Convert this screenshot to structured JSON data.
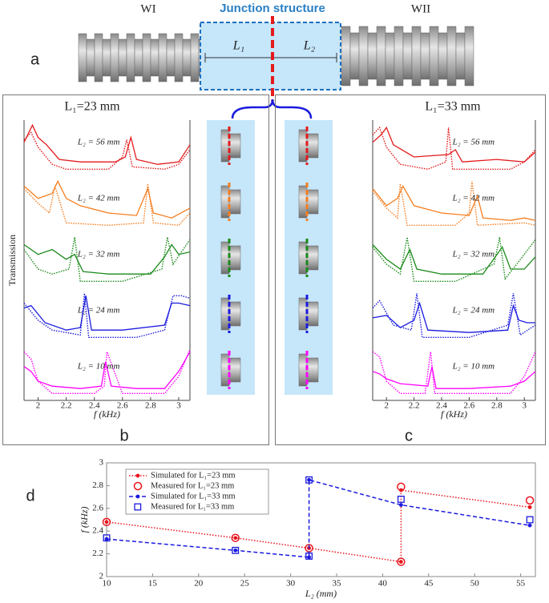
{
  "panel_a": {
    "label": "a",
    "left_label": "WI",
    "right_label": "WII",
    "title": "Junction structure",
    "segment_1": "L₁",
    "segment_2": "L₂"
  },
  "chart_data": [
    {
      "type": "spectra",
      "label": "b",
      "title": "L₁=23 mm",
      "ylabel": "Transmission",
      "xlabel": "f (kHz)",
      "xlim": [
        1.9,
        3.08
      ],
      "xticks": [
        2,
        2.2,
        2.4,
        2.6,
        2.8,
        3
      ],
      "series": [
        {
          "name": "L₂ = 56 mm",
          "color": "#e41a1c",
          "measured": {
            "x": [
              1.9,
              1.96,
              2.0,
              2.06,
              2.15,
              2.3,
              2.55,
              2.62,
              2.66,
              2.7,
              2.85,
              3.0,
              3.08
            ],
            "values": [
              0.6,
              0.95,
              0.7,
              0.55,
              0.25,
              0.2,
              0.2,
              0.3,
              0.7,
              0.25,
              0.15,
              0.2,
              0.55
            ]
          },
          "simulated": {
            "x": [
              1.9,
              1.95,
              2.0,
              2.1,
              2.2,
              2.5,
              2.6,
              2.63,
              2.67,
              2.9,
              3.0,
              3.08
            ],
            "values": [
              0.65,
              0.8,
              0.5,
              0.15,
              0.05,
              0.05,
              0.3,
              0.65,
              0.1,
              0.05,
              0.15,
              0.45
            ]
          }
        },
        {
          "name": "L₂ = 42 mm",
          "color": "#f57e20",
          "measured": {
            "x": [
              1.9,
              2.0,
              2.1,
              2.14,
              2.2,
              2.3,
              2.5,
              2.7,
              2.78,
              2.82,
              2.95,
              3.08
            ],
            "values": [
              0.85,
              0.6,
              0.7,
              0.95,
              0.6,
              0.45,
              0.3,
              0.25,
              0.8,
              0.3,
              0.2,
              0.4
            ]
          },
          "simulated": {
            "x": [
              1.9,
              2.0,
              2.08,
              2.12,
              2.2,
              2.5,
              2.75,
              2.78,
              2.82,
              3.0,
              3.08
            ],
            "values": [
              0.8,
              0.5,
              0.3,
              0.85,
              0.1,
              0.05,
              0.1,
              0.9,
              0.1,
              0.05,
              0.3
            ]
          }
        },
        {
          "name": "L₂ = 32 mm",
          "color": "#1a8a1a",
          "measured": {
            "x": [
              1.9,
              2.0,
              2.1,
              2.2,
              2.26,
              2.32,
              2.5,
              2.8,
              2.9,
              2.95,
              3.0,
              3.08
            ],
            "values": [
              0.8,
              0.6,
              0.7,
              0.5,
              0.6,
              0.25,
              0.2,
              0.2,
              0.55,
              0.8,
              0.6,
              0.65
            ]
          },
          "simulated": {
            "x": [
              1.9,
              2.0,
              2.1,
              2.22,
              2.26,
              2.3,
              2.6,
              2.88,
              2.92,
              2.96,
              3.08
            ],
            "values": [
              0.7,
              0.3,
              0.2,
              0.3,
              0.95,
              0.05,
              0.05,
              0.3,
              0.95,
              0.4,
              0.9
            ]
          }
        },
        {
          "name": "L₂ = 24 mm",
          "color": "#1a1adf",
          "measured": {
            "x": [
              1.9,
              1.95,
              2.05,
              2.2,
              2.3,
              2.34,
              2.38,
              2.6,
              2.9,
              2.95,
              3.0,
              3.08
            ],
            "values": [
              0.65,
              0.7,
              0.35,
              0.2,
              0.25,
              0.9,
              0.2,
              0.2,
              0.3,
              0.75,
              0.75,
              0.7
            ]
          },
          "simulated": {
            "x": [
              1.9,
              2.0,
              2.1,
              2.3,
              2.33,
              2.36,
              2.7,
              2.9,
              2.96,
              3.02,
              3.08
            ],
            "values": [
              0.75,
              0.4,
              0.2,
              0.1,
              0.95,
              0.05,
              0.05,
              0.2,
              0.9,
              0.9,
              0.85
            ]
          }
        },
        {
          "name": "L₂ = 10 mm",
          "color": "#ff00ff",
          "measured": {
            "x": [
              1.9,
              1.95,
              2.0,
              2.1,
              2.3,
              2.45,
              2.48,
              2.52,
              2.7,
              2.9,
              3.0,
              3.08
            ],
            "values": [
              0.6,
              0.5,
              0.3,
              0.2,
              0.15,
              0.2,
              0.7,
              0.2,
              0.15,
              0.15,
              0.5,
              0.9
            ]
          },
          "simulated": {
            "x": [
              1.9,
              1.95,
              2.0,
              2.1,
              2.4,
              2.47,
              2.49,
              2.6,
              2.9,
              3.0,
              3.08
            ],
            "values": [
              0.9,
              0.75,
              0.3,
              0.05,
              0.05,
              0.2,
              0.9,
              0.05,
              0.05,
              0.4,
              0.95
            ]
          }
        }
      ]
    },
    {
      "type": "spectra",
      "label": "c",
      "title": "L₁=33 mm",
      "xlabel": "f (kHz)",
      "xlim": [
        1.9,
        3.08
      ],
      "xticks": [
        2,
        2.2,
        2.4,
        2.6,
        2.8,
        3
      ],
      "series": [
        {
          "name": "L₂ = 56 mm",
          "color": "#e41a1c",
          "measured": {
            "x": [
              1.9,
              1.96,
              2.0,
              2.05,
              2.2,
              2.45,
              2.5,
              2.55,
              2.8,
              3.0,
              3.08
            ],
            "values": [
              0.6,
              0.75,
              0.9,
              0.55,
              0.3,
              0.35,
              0.45,
              0.2,
              0.25,
              0.2,
              0.4
            ]
          },
          "simulated": {
            "x": [
              1.9,
              1.95,
              2.0,
              2.1,
              2.3,
              2.43,
              2.45,
              2.48,
              2.9,
              3.0,
              3.08
            ],
            "values": [
              0.75,
              0.9,
              0.5,
              0.15,
              0.05,
              0.2,
              0.9,
              0.05,
              0.05,
              0.2,
              0.45
            ]
          }
        },
        {
          "name": "L₂ = 42 mm",
          "color": "#f57e20",
          "measured": {
            "x": [
              1.9,
              2.0,
              2.08,
              2.12,
              2.2,
              2.4,
              2.6,
              2.66,
              2.7,
              2.9,
              3.0,
              3.08
            ],
            "values": [
              0.8,
              0.45,
              0.6,
              0.85,
              0.45,
              0.3,
              0.25,
              0.65,
              0.2,
              0.15,
              0.2,
              0.15
            ]
          },
          "simulated": {
            "x": [
              1.9,
              2.0,
              2.08,
              2.1,
              2.15,
              2.5,
              2.6,
              2.62,
              2.66,
              3.0,
              3.08
            ],
            "values": [
              0.75,
              0.4,
              0.2,
              0.9,
              0.05,
              0.05,
              0.3,
              0.95,
              0.05,
              0.1,
              0.05
            ]
          }
        },
        {
          "name": "L₂ = 32 mm",
          "color": "#1a8a1a",
          "measured": {
            "x": [
              1.9,
              2.0,
              2.1,
              2.17,
              2.22,
              2.4,
              2.7,
              2.84,
              2.9,
              3.0,
              3.08
            ],
            "values": [
              0.8,
              0.5,
              0.3,
              0.7,
              0.3,
              0.2,
              0.2,
              0.75,
              0.3,
              0.3,
              0.55
            ]
          },
          "simulated": {
            "x": [
              1.9,
              2.0,
              2.1,
              2.15,
              2.2,
              2.5,
              2.78,
              2.82,
              2.86,
              3.0,
              3.08
            ],
            "values": [
              0.75,
              0.4,
              0.2,
              0.95,
              0.05,
              0.05,
              0.4,
              0.95,
              0.1,
              0.6,
              0.9
            ]
          }
        },
        {
          "name": "L₂ = 24 mm",
          "color": "#1a1adf",
          "measured": {
            "x": [
              1.9,
              2.0,
              2.1,
              2.2,
              2.24,
              2.3,
              2.6,
              2.88,
              2.92,
              2.96,
              3.02,
              3.08
            ],
            "values": [
              0.45,
              0.5,
              0.25,
              0.4,
              0.75,
              0.2,
              0.15,
              0.2,
              0.7,
              0.4,
              0.35,
              0.35
            ]
          },
          "simulated": {
            "x": [
              1.9,
              1.95,
              2.05,
              2.18,
              2.22,
              2.26,
              2.6,
              2.88,
              2.92,
              2.97,
              3.08
            ],
            "values": [
              0.65,
              0.8,
              0.3,
              0.2,
              0.95,
              0.05,
              0.05,
              0.3,
              0.95,
              0.1,
              0.3
            ]
          }
        },
        {
          "name": "L₂ = 10 mm",
          "color": "#ff00ff",
          "measured": {
            "x": [
              1.9,
              1.95,
              2.0,
              2.1,
              2.3,
              2.33,
              2.36,
              2.6,
              2.9,
              3.0,
              3.08
            ],
            "values": [
              0.5,
              0.45,
              0.35,
              0.25,
              0.2,
              0.6,
              0.15,
              0.15,
              0.2,
              0.3,
              0.5
            ]
          },
          "simulated": {
            "x": [
              1.9,
              1.95,
              2.0,
              2.1,
              2.28,
              2.32,
              2.35,
              2.6,
              2.9,
              3.0,
              3.08
            ],
            "values": [
              0.9,
              0.8,
              0.3,
              0.05,
              0.05,
              0.9,
              0.05,
              0.05,
              0.05,
              0.4,
              0.9
            ]
          }
        }
      ]
    },
    {
      "type": "line",
      "label": "d",
      "xlabel": "L₂ (mm)",
      "ylabel": "f (kHz)",
      "xlim": [
        10,
        56.6
      ],
      "ylim": [
        2,
        3
      ],
      "xticks": [
        10,
        15,
        20,
        25,
        30,
        35,
        40,
        45,
        50,
        55
      ],
      "yticks": [
        2,
        2.2,
        2.4,
        2.6,
        2.8,
        3
      ],
      "series": [
        {
          "name": "Simulated for L₁=23 mm",
          "color": "#e8141c",
          "line_style": "dotted",
          "marker": "dot",
          "x": [
            10,
            24,
            32,
            42,
            42,
            56
          ],
          "values": [
            2.48,
            2.34,
            2.25,
            2.13,
            2.76,
            2.61
          ]
        },
        {
          "name": "Measured for L₁=23 mm",
          "color": "#e8141c",
          "line_style": "none",
          "marker": "circle",
          "x": [
            10,
            24,
            32,
            42,
            42,
            56
          ],
          "values": [
            2.48,
            2.34,
            2.25,
            2.13,
            2.79,
            2.67
          ]
        },
        {
          "name": "Simulated for L₁=33 mm",
          "color": "#1a1adf",
          "line_style": "dashed",
          "marker": "dot",
          "x": [
            10,
            24,
            32,
            32,
            42,
            56
          ],
          "values": [
            2.33,
            2.23,
            2.17,
            2.85,
            2.63,
            2.45
          ]
        },
        {
          "name": "Measured for L₁=33 mm",
          "color": "#1a1adf",
          "line_style": "none",
          "marker": "square",
          "x": [
            10,
            24,
            32,
            32,
            42,
            56
          ],
          "values": [
            2.34,
            2.23,
            2.18,
            2.85,
            2.68,
            2.5
          ]
        }
      ]
    }
  ]
}
